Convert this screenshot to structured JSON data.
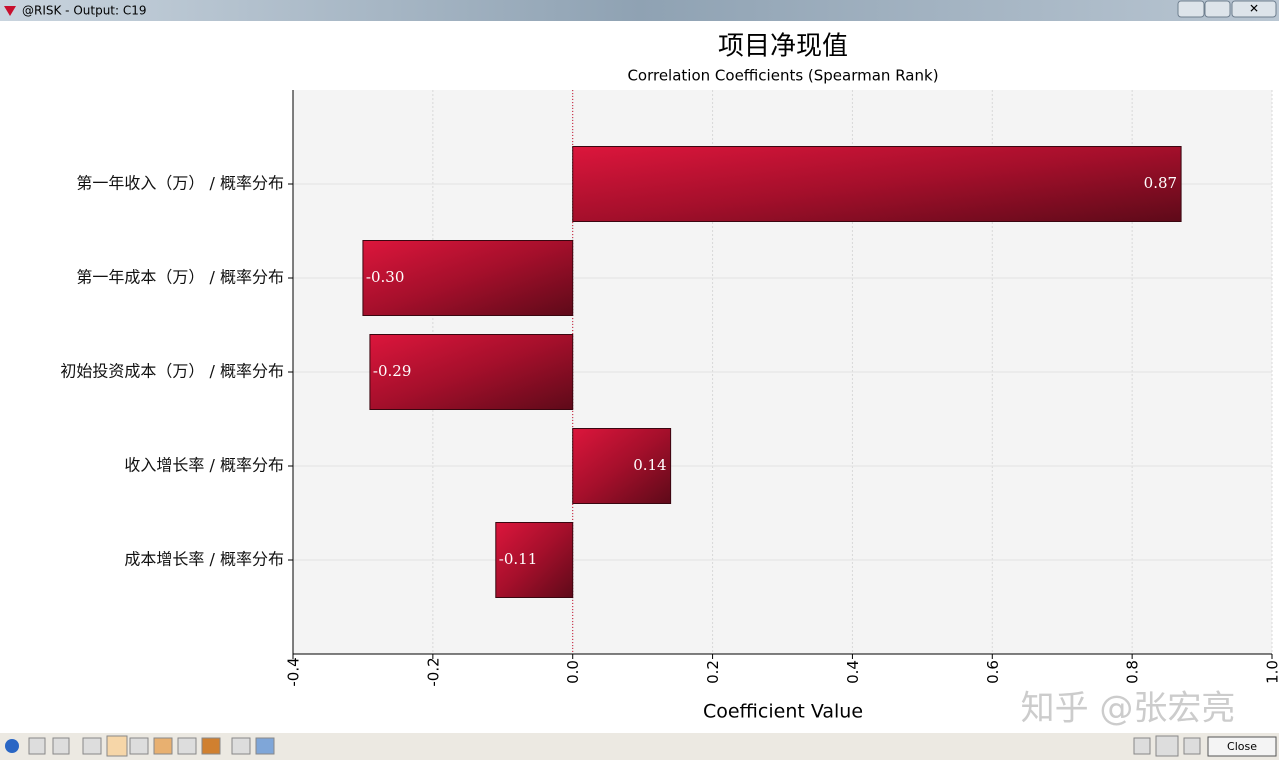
{
  "window": {
    "title": "@RISK - Output: C19",
    "close_button": "Close",
    "watermark": "知乎 @张宏亮"
  },
  "chart_data": {
    "type": "bar",
    "orientation": "horizontal",
    "title": "项目净现值",
    "subtitle": "Correlation Coefficients (Spearman Rank)",
    "x_label": "Coefficient Value",
    "categories": [
      "第一年收入（万） / 概率分布",
      "第一年成本（万） / 概率分布",
      "初始投资成本（万） / 概率分布",
      "收入增长率 / 概率分布",
      "成本增长率 / 概率分布"
    ],
    "values": [
      0.87,
      -0.3,
      -0.29,
      0.14,
      -0.11
    ],
    "value_labels": [
      "0.87",
      "-0.30",
      "-0.29",
      "0.14",
      "-0.11"
    ],
    "color": "#c8102e",
    "xlim": [
      -0.4,
      1.0
    ],
    "xticks": [
      -0.4,
      -0.2,
      {
        "value": 0,
        "label": "0.0"
      },
      0.2,
      0.4,
      0.6,
      0.8,
      {
        "value": 1,
        "label": "1.0"
      }
    ],
    "grid": true
  }
}
